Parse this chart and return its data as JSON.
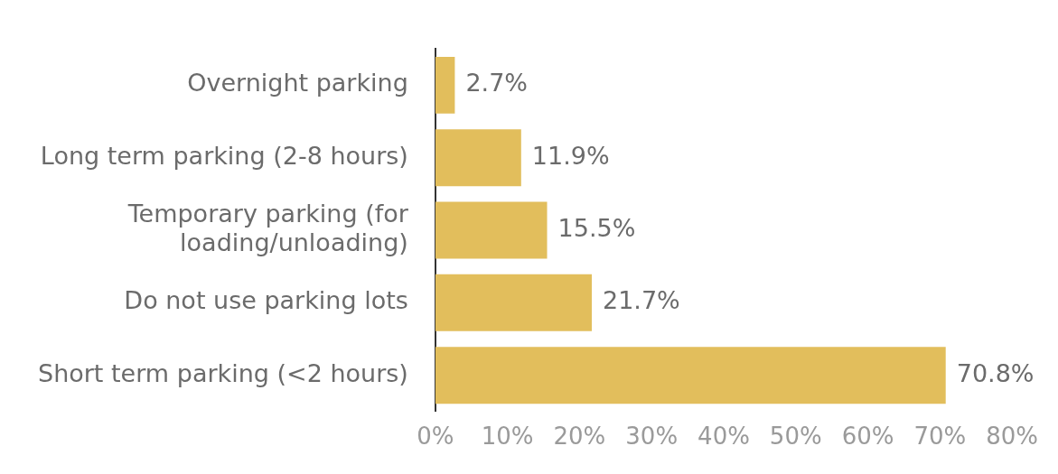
{
  "chart_data": {
    "type": "bar",
    "orientation": "horizontal",
    "categories": [
      "Overnight parking",
      "Long term parking (2-8 hours)",
      "Temporary parking (for loading/unloading)",
      "Do not use parking lots",
      "Short term parking (<2 hours)"
    ],
    "values": [
      2.7,
      11.9,
      15.5,
      21.7,
      70.8
    ],
    "value_labels": [
      "2.7%",
      "11.9%",
      "15.5%",
      "21.7%",
      "70.8%"
    ],
    "color": "#e2be5c",
    "xlim": [
      0,
      80
    ],
    "xticks": [
      {
        "value": 0,
        "label": "0%"
      },
      {
        "value": 10,
        "label": "10%"
      },
      {
        "value": 20,
        "label": "20%"
      },
      {
        "value": 30,
        "label": "30%"
      },
      {
        "value": 40,
        "label": "40%"
      },
      {
        "value": 50,
        "label": "50%"
      },
      {
        "value": 60,
        "label": "60%"
      },
      {
        "value": 70,
        "label": "70%"
      },
      {
        "value": 80,
        "label": "80%"
      }
    ],
    "grid": false,
    "legend": false
  }
}
